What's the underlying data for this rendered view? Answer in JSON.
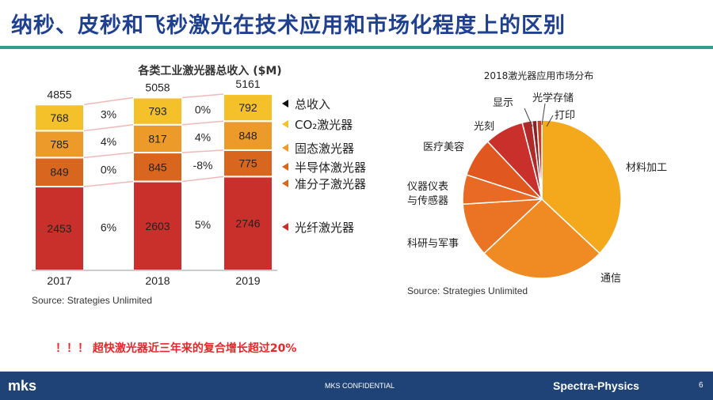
{
  "slide": {
    "title": "纳秒、皮秒和飞秒激光在技术应用和市场化程度上的区别",
    "note": "！！！ 超快激光器近三年来的复合增长超过20%",
    "footer_logo": "mks",
    "footer_confidential": "MKS CONFIDENTIAL",
    "footer_brand": "Spectra-Physics",
    "page_number": "6"
  },
  "chart_data": [
    {
      "type": "bar",
      "title": "各类工业激光器总收入 ($M)",
      "source": "Source: Strategies Unlimited",
      "categories": [
        "2017",
        "2018",
        "2019"
      ],
      "totals": [
        "4855",
        "5058",
        "5161"
      ],
      "series": [
        {
          "name": "光纤激光器",
          "values": [
            2453,
            2603,
            2746
          ],
          "color": "#c9302c"
        },
        {
          "name": "半导体激光器 准分子激光器",
          "values": [
            849,
            845,
            775
          ],
          "color": "#d9661f"
        },
        {
          "name": "固态激光器",
          "values": [
            785,
            817,
            848
          ],
          "color": "#ec9a2a"
        },
        {
          "name": "CO₂激光器",
          "values": [
            768,
            793,
            792
          ],
          "color": "#f4c12a"
        }
      ],
      "growth": [
        {
          "series": "CO₂激光器",
          "values": [
            "3%",
            "0%"
          ]
        },
        {
          "series": "固态激光器",
          "values": [
            "4%",
            "4%"
          ]
        },
        {
          "series": "半导体激光器",
          "values": [
            "0%",
            "-8%"
          ]
        },
        {
          "series": "光纤激光器",
          "values": [
            "6%",
            "5%"
          ]
        }
      ],
      "legend": [
        {
          "label": "总收入",
          "color": "#111111"
        },
        {
          "label": "CO₂激光器",
          "color": "#f4c12a"
        },
        {
          "label": "固态激光器",
          "color": "#ec9a2a"
        },
        {
          "label": "半导体激光器",
          "color": "#d9661f"
        },
        {
          "label": "准分子激光器",
          "color": "#d9661f"
        },
        {
          "label": "光纤激光器",
          "color": "#c9302c"
        }
      ]
    },
    {
      "type": "pie",
      "title": "2018激光器应用市场分布",
      "source": "Source: Strategies Unlimited",
      "slices": [
        {
          "label": "材料加工",
          "value": 37,
          "color": "#f4a81c"
        },
        {
          "label": "通信",
          "value": 26,
          "color": "#f08a22"
        },
        {
          "label": "科研与军事",
          "value": 11,
          "color": "#ea7424"
        },
        {
          "label": "仪器仪表与传感器",
          "value": 6,
          "color": "#e86a24"
        },
        {
          "label": "医疗美容",
          "value": 8,
          "color": "#e0581f"
        },
        {
          "label": "光刻",
          "value": 8,
          "color": "#c9302c"
        },
        {
          "label": "显示",
          "value": 2,
          "color": "#b02a2a"
        },
        {
          "label": "光学存储",
          "value": 1,
          "color": "#8a2222"
        },
        {
          "label": "打印",
          "value": 1,
          "color": "#cc3a2a"
        }
      ]
    }
  ]
}
